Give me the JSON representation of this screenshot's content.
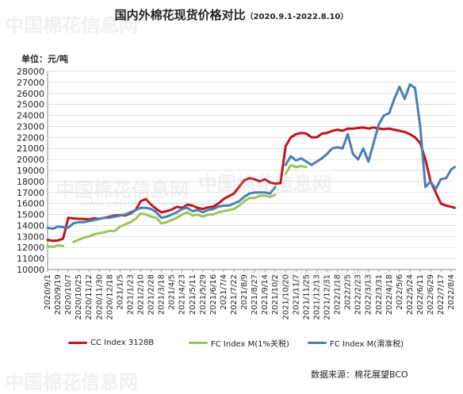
{
  "title": "国内外棉花现货价格对比",
  "subtitle": "（2020.9.1-2022.8.10）",
  "unit_label": "单位：元/吨",
  "source": "数据来源：棉花展望BCO",
  "watermark": {
    "text": "中国棉花信息网",
    "url": "www.cottonchina.org.cn"
  },
  "colors": {
    "cc": "#c0141c",
    "fc1": "#9dc35a",
    "fc2": "#4a7fb5",
    "grid": "#d9d9d9"
  },
  "chart_data": {
    "type": "line",
    "title": "国内外棉花现货价格对比",
    "ylabel": "单位：元/吨",
    "ylim": [
      10000,
      28000
    ],
    "y_ticks": [
      "10000",
      "11000",
      "12000",
      "13000",
      "14000",
      "15000",
      "16000",
      "17000",
      "18000",
      "19000",
      "20000",
      "21000",
      "22000",
      "23000",
      "24000",
      "25000",
      "26000",
      "27000",
      "28000"
    ],
    "x_ticks": [
      "2020/9/1",
      "2020/9/19",
      "2020/10/7",
      "2020/10/25",
      "2020/11/12",
      "2020/11/30",
      "2020/12/18",
      "2021/1/5",
      "2021/1/23",
      "2021/2/10",
      "2021/2/28",
      "2021/3/18",
      "2021/4/5",
      "2021/4/23",
      "2021/5/11",
      "2021/5/29",
      "2021/6/16",
      "2021/7/4",
      "2021/7/22",
      "2021/8/9",
      "2021/8/27",
      "2021/9/14",
      "2021/10/2",
      "2021/10/20",
      "2021/11/7",
      "2021/11/25",
      "2021/12/13",
      "2021/12/31",
      "2022/1/18",
      "2022/2/5",
      "2022/2/23",
      "2022/3/13",
      "2022/3/31",
      "2022/4/18",
      "2022/5/6",
      "2022/5/24",
      "2022/6/11",
      "2022/6/29",
      "2022/7/17",
      "2022/8/4"
    ],
    "grid": true,
    "legend": "bottom",
    "series": [
      {
        "name": "CC Index 3128B",
        "color": "#c0141c",
        "x": [
          "2020/9/1",
          "2020/9/10",
          "2020/9/19",
          "2020/9/28",
          "2020/10/7",
          "2020/10/14",
          "2020/10/25",
          "2020/11/3",
          "2020/11/12",
          "2020/11/21",
          "2020/11/30",
          "2020/12/9",
          "2020/12/18",
          "2020/12/27",
          "2021/1/5",
          "2021/1/14",
          "2021/1/23",
          "2021/2/1",
          "2021/2/10",
          "2021/2/19",
          "2021/2/28",
          "2021/3/9",
          "2021/3/18",
          "2021/3/27",
          "2021/4/5",
          "2021/4/14",
          "2021/4/23",
          "2021/5/2",
          "2021/5/11",
          "2021/5/20",
          "2021/5/29",
          "2021/6/7",
          "2021/6/16",
          "2021/6/25",
          "2021/7/4",
          "2021/7/13",
          "2021/7/22",
          "2021/7/31",
          "2021/8/9",
          "2021/8/18",
          "2021/8/27",
          "2021/9/5",
          "2021/9/14",
          "2021/9/23",
          "2021/10/2",
          "2021/10/11",
          "2021/10/20",
          "2021/10/29",
          "2021/11/7",
          "2021/11/16",
          "2021/11/25",
          "2021/12/4",
          "2021/12/13",
          "2021/12/22",
          "2021/12/31",
          "2022/1/9",
          "2022/1/18",
          "2022/1/27",
          "2022/2/5",
          "2022/2/14",
          "2022/2/23",
          "2022/3/4",
          "2022/3/13",
          "2022/3/22",
          "2022/3/31",
          "2022/4/9",
          "2022/4/18",
          "2022/4/27",
          "2022/5/6",
          "2022/5/15",
          "2022/5/24",
          "2022/6/2",
          "2022/6/11",
          "2022/6/20",
          "2022/6/29",
          "2022/7/8",
          "2022/7/17",
          "2022/7/26",
          "2022/8/4",
          "2022/8/10"
        ],
        "values": [
          12700,
          12600,
          12650,
          12800,
          14700,
          14650,
          14600,
          14600,
          14550,
          14650,
          14600,
          14700,
          14800,
          14900,
          14950,
          14900,
          15100,
          15400,
          16200,
          16400,
          15900,
          15500,
          15200,
          15300,
          15450,
          15700,
          15600,
          15900,
          15800,
          15600,
          15500,
          15650,
          15700,
          16000,
          16400,
          16650,
          16900,
          17500,
          18100,
          18300,
          18200,
          18000,
          18200,
          17900,
          17800,
          17850,
          21200,
          22000,
          22300,
          22400,
          22350,
          22000,
          22000,
          22350,
          22400,
          22600,
          22700,
          22600,
          22800,
          22800,
          22850,
          22900,
          22800,
          22900,
          22800,
          22750,
          22800,
          22700,
          22600,
          22500,
          22300,
          22000,
          21500,
          20000,
          18000,
          17000,
          16000,
          15800,
          15700,
          15600
        ]
      },
      {
        "name": "FC Index M(1%关税)",
        "color": "#9dc35a",
        "x": [
          "2020/9/1",
          "2020/9/10",
          "2020/9/19",
          "2020/9/28",
          "2020/10/7",
          "2020/10/16",
          "2020/10/25",
          "2020/11/3",
          "2020/11/12",
          "2020/11/21",
          "2020/11/30",
          "2020/12/9",
          "2020/12/18",
          "2020/12/27",
          "2021/1/5",
          "2021/1/14",
          "2021/1/23",
          "2021/2/1",
          "2021/2/10",
          "2021/2/19",
          "2021/2/28",
          "2021/3/9",
          "2021/3/18",
          "2021/3/27",
          "2021/4/5",
          "2021/4/14",
          "2021/4/23",
          "2021/5/2",
          "2021/5/11",
          "2021/5/20",
          "2021/5/29",
          "2021/6/7",
          "2021/6/16",
          "2021/6/25",
          "2021/7/4",
          "2021/7/13",
          "2021/7/22",
          "2021/7/31",
          "2021/8/9",
          "2021/8/18",
          "2021/8/27",
          "2021/9/5",
          "2021/9/14",
          "2021/9/23",
          "2021/10/2",
          "2021/10/11",
          "2021/10/20",
          "2021/10/29",
          "2021/11/7",
          "2021/11/16",
          "2021/11/25"
        ],
        "values": [
          12100,
          12050,
          12200,
          12150,
          null,
          12500,
          12700,
          12900,
          13000,
          13200,
          13300,
          13400,
          13500,
          13500,
          13900,
          14100,
          14300,
          14600,
          15100,
          15000,
          14800,
          14700,
          14200,
          14300,
          14500,
          14700,
          15000,
          15200,
          14900,
          15000,
          14800,
          15000,
          15000,
          15200,
          15300,
          15400,
          15500,
          15800,
          16200,
          16500,
          16500,
          16700,
          16700,
          16600,
          16800,
          null,
          18700,
          19500,
          19300,
          19400,
          19300
        ]
      },
      {
        "name": "FC Index M(滑准税)",
        "color": "#4a7fb5",
        "x": [
          "2020/9/1",
          "2020/9/10",
          "2020/9/19",
          "2020/9/28",
          "2020/10/7",
          "2020/10/16",
          "2020/10/25",
          "2020/11/3",
          "2020/11/12",
          "2020/11/21",
          "2020/11/30",
          "2020/12/9",
          "2020/12/18",
          "2020/12/27",
          "2021/1/5",
          "2021/1/14",
          "2021/1/23",
          "2021/2/1",
          "2021/2/10",
          "2021/2/19",
          "2021/2/28",
          "2021/3/9",
          "2021/3/18",
          "2021/3/27",
          "2021/4/5",
          "2021/4/14",
          "2021/4/23",
          "2021/5/2",
          "2021/5/11",
          "2021/5/20",
          "2021/5/29",
          "2021/6/7",
          "2021/6/16",
          "2021/6/25",
          "2021/7/4",
          "2021/7/13",
          "2021/7/22",
          "2021/7/31",
          "2021/8/9",
          "2021/8/18",
          "2021/8/27",
          "2021/9/5",
          "2021/9/14",
          "2021/9/23",
          "2021/10/2",
          "2021/10/11",
          "2021/10/20",
          "2021/10/29",
          "2021/11/7",
          "2021/11/16",
          "2021/11/25",
          "2021/12/4",
          "2021/12/13",
          "2021/12/22",
          "2021/12/31",
          "2022/1/9",
          "2022/1/18",
          "2022/1/27",
          "2022/2/5",
          "2022/2/14",
          "2022/2/23",
          "2022/3/4",
          "2022/3/13",
          "2022/3/22",
          "2022/3/31",
          "2022/4/9",
          "2022/4/18",
          "2022/4/27",
          "2022/5/6",
          "2022/5/15",
          "2022/5/24",
          "2022/6/2",
          "2022/6/11",
          "2022/6/20",
          "2022/6/29",
          "2022/7/8",
          "2022/7/17",
          "2022/7/26",
          "2022/8/4",
          "2022/8/10"
        ],
        "values": [
          13800,
          13700,
          13900,
          13850,
          13800,
          14200,
          14300,
          14300,
          14400,
          14500,
          14600,
          14700,
          14700,
          14800,
          14900,
          15000,
          15200,
          15400,
          15600,
          15600,
          15500,
          15200,
          14700,
          14800,
          15000,
          15200,
          15500,
          15600,
          15300,
          15400,
          15200,
          15400,
          15500,
          15700,
          15800,
          15800,
          16000,
          16200,
          16600,
          16900,
          17000,
          17000,
          17000,
          16900,
          17500,
          null,
          19500,
          20300,
          19900,
          20100,
          19800,
          19500,
          19800,
          20100,
          20500,
          21000,
          21100,
          21000,
          22300,
          20500,
          20000,
          21000,
          19800,
          21500,
          23200,
          24000,
          24200,
          25500,
          26600,
          25500,
          26800,
          26500,
          23000,
          17500,
          18000,
          17300,
          18200,
          18300,
          19100,
          19300
        ]
      }
    ]
  }
}
